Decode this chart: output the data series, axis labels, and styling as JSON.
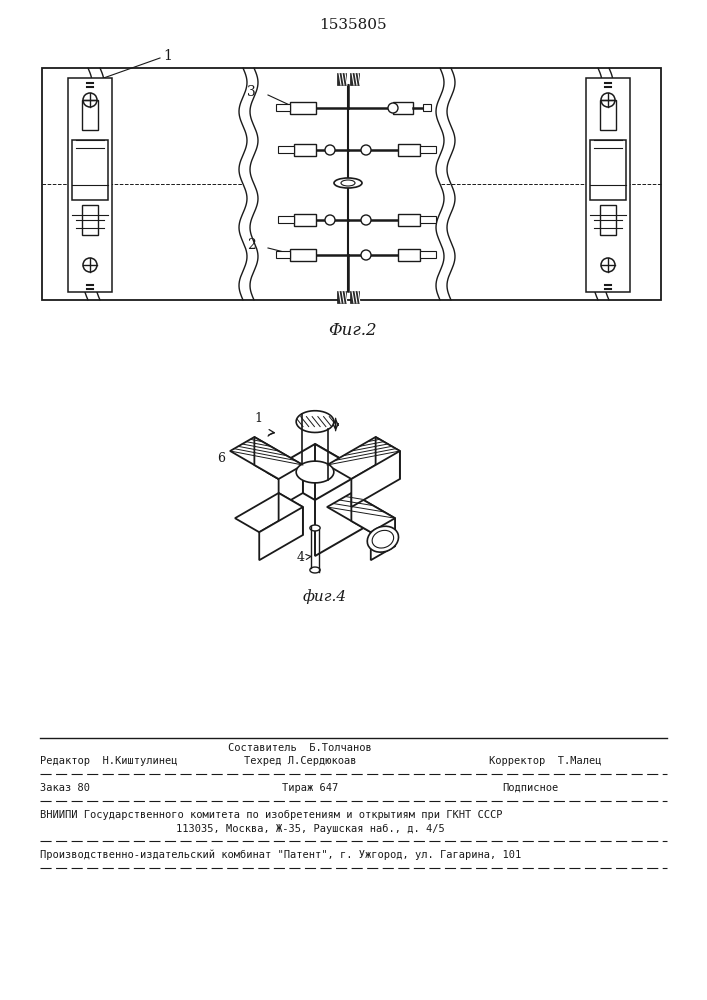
{
  "title": "1535805",
  "fig2_label": "Φиг.2",
  "fig4_label": "фиг.4",
  "bg_color": "#ffffff",
  "line_color": "#1a1a1a",
  "footer_line1_left": "Редактор  Н.Киштулинец",
  "footer_line1_center_top": "Составитель  Б.Толчанов",
  "footer_line1_center_bot": "Техред Л.Сердюкоав",
  "footer_line1_right": "Корректор  Т.Малец",
  "footer_line2_left": "Заказ 80",
  "footer_line2_center": "Тираж 647",
  "footer_line2_right": "Подписное",
  "footer_line3": "ВНИИПИ Государственного комитета по изобретениям и открытиям при ГКНТ СССР",
  "footer_line4": "113035, Москва, Ж-35, Раушская наб., д. 4/5",
  "footer_line5": "Производственно-издательский комбинат \"Патент\", г. Ужгород, ул. Гагарина, 101"
}
